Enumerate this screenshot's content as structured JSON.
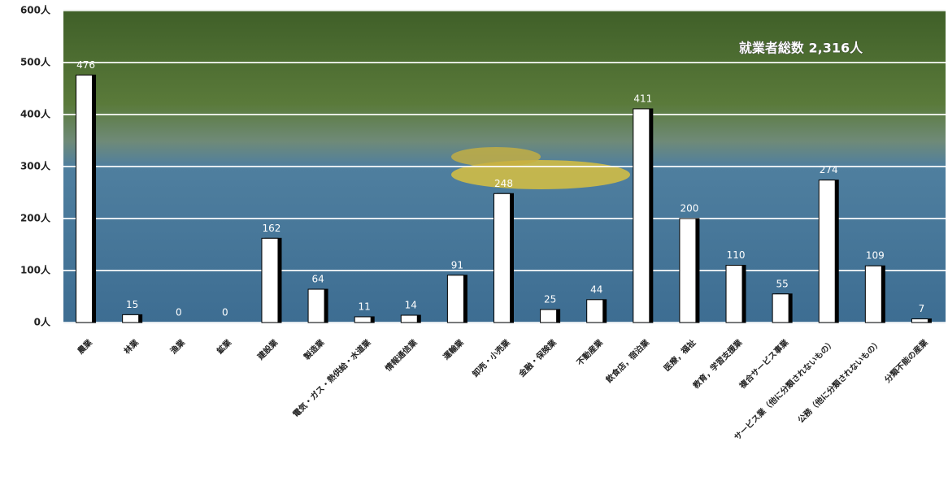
{
  "chart_data": {
    "type": "bar",
    "annotation": "就業者総数 2,316人",
    "categories": [
      "農業",
      "林業",
      "漁業",
      "鉱業",
      "建設業",
      "製造業",
      "電気・ガス・熱供給・水道業",
      "情報通信業",
      "運輸業",
      "卸売・小売業",
      "金融・保険業",
      "不動産業",
      "飲食店，宿泊業",
      "医療，福祉",
      "教育，学習支援業",
      "複合サービス事業",
      "サービス業（他に分類されないもの）",
      "公務（他に分類されないもの）",
      "分類不能の産業"
    ],
    "values": [
      476,
      15,
      0,
      0,
      162,
      64,
      11,
      14,
      91,
      248,
      25,
      44,
      411,
      200,
      110,
      55,
      274,
      109,
      7
    ],
    "color": "#ffffff",
    "ylim": [
      0,
      600
    ],
    "yticks": [
      {
        "value": 0,
        "label": "0人"
      },
      {
        "value": 100,
        "label": "100人"
      },
      {
        "value": 200,
        "label": "200人"
      },
      {
        "value": 300,
        "label": "300人"
      },
      {
        "value": 400,
        "label": "400人"
      },
      {
        "value": 500,
        "label": "500人"
      },
      {
        "value": 600,
        "label": "600人"
      }
    ],
    "grid": true
  }
}
